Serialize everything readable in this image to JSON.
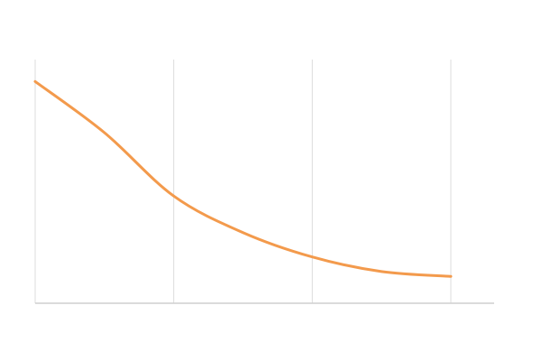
{
  "chart_data": {
    "type": "line",
    "title": "",
    "xlabel": "",
    "ylabel": "",
    "x": [
      0,
      1,
      2,
      3
    ],
    "y_range": [
      0,
      100
    ],
    "grid": {
      "vertical": true,
      "horizontal": false
    },
    "legend": "none",
    "series": [
      {
        "color": "#f39a4c",
        "points": [
          [
            0,
            91
          ],
          [
            0.5,
            70
          ],
          [
            1,
            44
          ],
          [
            1.5,
            29
          ],
          [
            2,
            19
          ],
          [
            2.5,
            13
          ],
          [
            3,
            11
          ]
        ]
      }
    ]
  }
}
